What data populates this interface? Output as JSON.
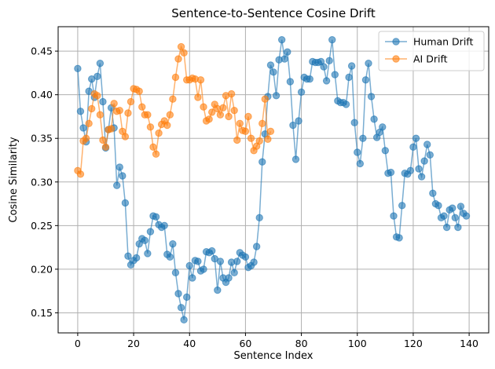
{
  "chart_data": {
    "type": "line",
    "title": "Sentence-to-Sentence Cosine Drift",
    "xlabel": "Sentence Index",
    "ylabel": "Cosine Similarity",
    "xlim": [
      -7,
      147
    ],
    "ylim": [
      0.127,
      0.478
    ],
    "xticks": [
      0,
      20,
      40,
      60,
      80,
      100,
      120,
      140
    ],
    "xtick_labels": [
      "0",
      "20",
      "40",
      "60",
      "80",
      "100",
      "120",
      "140"
    ],
    "yticks": [
      0.15,
      0.2,
      0.25,
      0.3,
      0.35,
      0.4,
      0.45
    ],
    "ytick_labels": [
      "0.15",
      "0.20",
      "0.25",
      "0.30",
      "0.35",
      "0.40",
      "0.45"
    ],
    "grid": true,
    "legend_position": "top-right",
    "series": [
      {
        "name": "Human Drift",
        "color": "#1f77b4",
        "x_start": 0,
        "values": [
          0.43,
          0.381,
          0.362,
          0.346,
          0.404,
          0.418,
          0.397,
          0.421,
          0.436,
          0.392,
          0.339,
          0.36,
          0.385,
          0.362,
          0.296,
          0.317,
          0.307,
          0.276,
          0.215,
          0.205,
          0.21,
          0.213,
          0.229,
          0.235,
          0.233,
          0.218,
          0.243,
          0.261,
          0.26,
          0.251,
          0.248,
          0.25,
          0.217,
          0.214,
          0.229,
          0.196,
          0.172,
          0.156,
          0.142,
          0.168,
          0.204,
          0.19,
          0.21,
          0.209,
          0.198,
          0.2,
          0.22,
          0.219,
          0.221,
          0.212,
          0.176,
          0.209,
          0.19,
          0.185,
          0.19,
          0.208,
          0.196,
          0.209,
          0.219,
          0.216,
          0.214,
          0.202,
          0.204,
          0.208,
          0.226,
          0.259,
          0.323,
          0.355,
          0.398,
          0.434,
          0.426,
          0.399,
          0.44,
          0.463,
          0.441,
          0.449,
          0.415,
          0.365,
          0.326,
          0.37,
          0.403,
          0.42,
          0.418,
          0.418,
          0.438,
          0.437,
          0.437,
          0.438,
          0.432,
          0.416,
          0.439,
          0.463,
          0.423,
          0.393,
          0.391,
          0.391,
          0.389,
          0.42,
          0.433,
          0.368,
          0.334,
          0.321,
          0.35,
          0.417,
          0.436,
          0.398,
          0.372,
          0.351,
          0.357,
          0.363,
          0.336,
          0.31,
          0.311,
          0.261,
          0.237,
          0.236,
          0.273,
          0.31,
          0.309,
          0.313,
          0.34,
          0.35,
          0.315,
          0.306,
          0.324,
          0.343,
          0.331,
          0.287,
          0.275,
          0.273,
          0.259,
          0.261,
          0.248,
          0.268,
          0.27,
          0.259,
          0.248,
          0.272,
          0.264,
          0.261
        ]
      },
      {
        "name": "AI Drift",
        "color": "#ff7f0e",
        "x_start": 0,
        "values": [
          0.313,
          0.309,
          0.347,
          0.35,
          0.367,
          0.384,
          0.401,
          0.399,
          0.377,
          0.348,
          0.34,
          0.36,
          0.361,
          0.39,
          0.381,
          0.382,
          0.358,
          0.352,
          0.379,
          0.392,
          0.407,
          0.406,
          0.404,
          0.386,
          0.377,
          0.377,
          0.363,
          0.34,
          0.332,
          0.356,
          0.366,
          0.37,
          0.365,
          0.377,
          0.395,
          0.42,
          0.441,
          0.455,
          0.448,
          0.417,
          0.417,
          0.419,
          0.418,
          0.397,
          0.417,
          0.386,
          0.37,
          0.372,
          0.38,
          0.389,
          0.384,
          0.377,
          0.385,
          0.399,
          0.375,
          0.401,
          0.382,
          0.348,
          0.367,
          0.359,
          0.358,
          0.375,
          0.35,
          0.336,
          0.341,
          0.347,
          0.367,
          0.395,
          0.349,
          0.358
        ]
      }
    ]
  }
}
